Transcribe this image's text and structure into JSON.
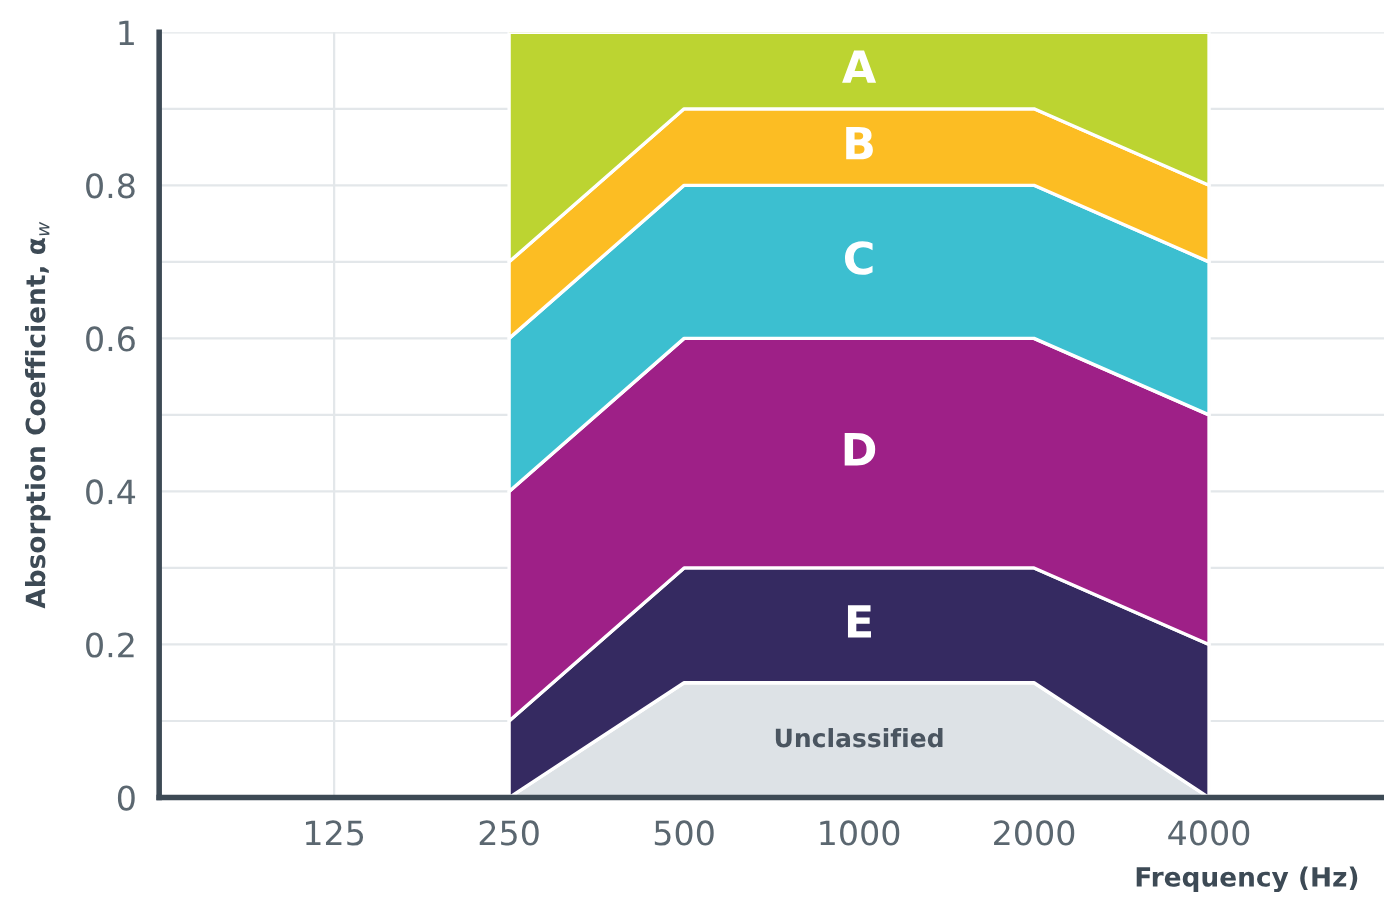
{
  "chart_data": {
    "type": "area",
    "stacked": true,
    "xlabel": "Frequency (Hz)",
    "ylabel": "Absorption Coefficient, α$_{w}$",
    "categories": [
      "125",
      "250",
      "500",
      "1000",
      "2000",
      "4000"
    ],
    "series": [
      {
        "name": "Unclassified",
        "color": "#dde2e6",
        "values": [
          null,
          0,
          0.15,
          0.15,
          0.15,
          0
        ]
      },
      {
        "name": "E",
        "color": "#352a61",
        "values": [
          null,
          0.1,
          0.15,
          0.15,
          0.15,
          0.2
        ]
      },
      {
        "name": "D",
        "color": "#9e2087",
        "values": [
          null,
          0.3,
          0.3,
          0.3,
          0.3,
          0.3
        ]
      },
      {
        "name": "C",
        "color": "#3cbfd0",
        "values": [
          null,
          0.2,
          0.2,
          0.2,
          0.2,
          0.2
        ]
      },
      {
        "name": "B",
        "color": "#fcbd23",
        "values": [
          null,
          0.1,
          0.1,
          0.1,
          0.1,
          0.1
        ]
      },
      {
        "name": "A",
        "color": "#bcd431",
        "values": [
          null,
          0.3,
          0.1,
          0.1,
          0.1,
          0.2
        ]
      }
    ],
    "ylim": [
      0,
      1
    ],
    "yticks": [
      0,
      {
        "value": 0.1,
        "label": null
      },
      0.2,
      {
        "value": 0.3,
        "label": null
      },
      0.4,
      {
        "value": 0.5,
        "label": null
      },
      0.6,
      {
        "value": 0.7,
        "label": null
      },
      0.8,
      {
        "value": 0.9,
        "label": null
      },
      1
    ],
    "grid": true,
    "legend": false
  }
}
